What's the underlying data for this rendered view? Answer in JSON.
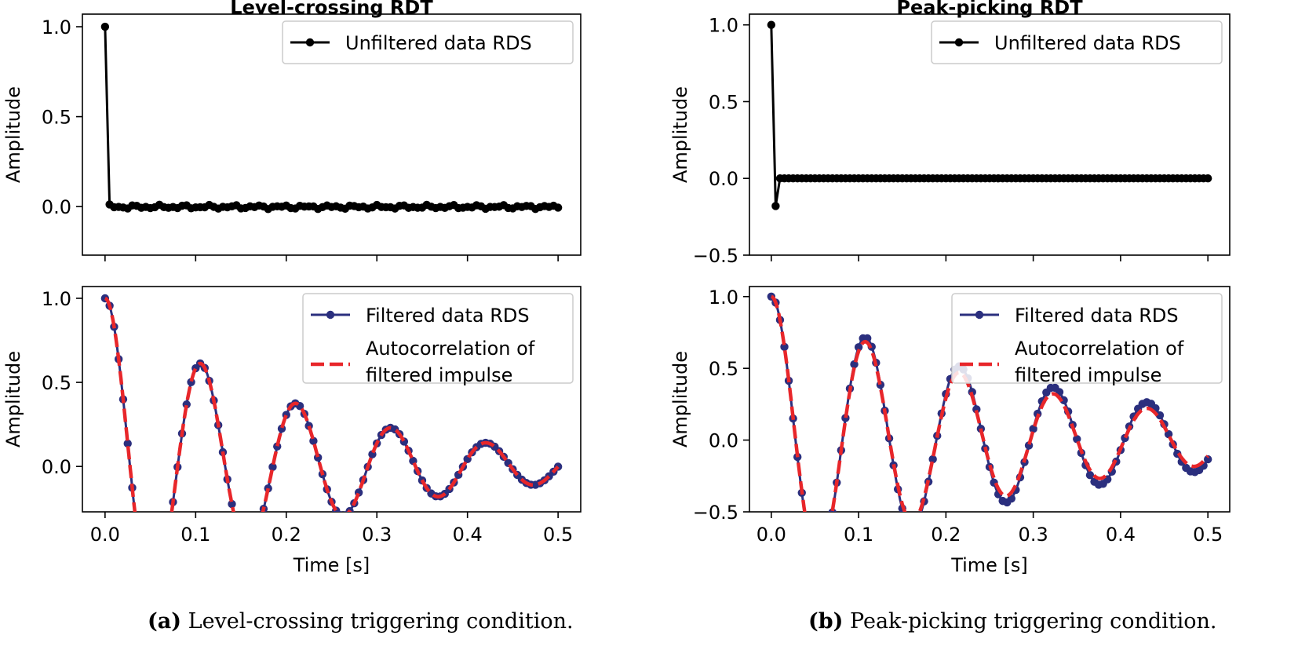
{
  "chart_data": [
    {
      "type": "line",
      "panel": "a-top",
      "title": "Level-crossing RDT",
      "xlabel": "",
      "ylabel": "Amplitude",
      "xlim": [
        -0.025,
        0.525
      ],
      "ylim": [
        -0.27,
        1.07
      ],
      "xticks": [
        0.0,
        0.1,
        0.2,
        0.3,
        0.4,
        0.5
      ],
      "xtick_labels_shown": false,
      "yticks": [
        0.0,
        0.5,
        1.0
      ],
      "ytick_labels": [
        "0.0",
        "0.5",
        "1.0"
      ],
      "legend_position": "top-right",
      "series": [
        {
          "name": "Unfiltered data RDS",
          "color": "#000000",
          "style": "solid-with-dots",
          "x_range": [
            0.0,
            0.5
          ],
          "n_points": 101,
          "points": [
            [
              0.0,
              1.0
            ],
            [
              0.005,
              0.01
            ],
            [
              0.01,
              0.0
            ],
            [
              0.05,
              0.0
            ],
            [
              0.1,
              0.0
            ],
            [
              0.2,
              0.01
            ],
            [
              0.3,
              0.0
            ],
            [
              0.4,
              0.0
            ],
            [
              0.5,
              -0.01
            ]
          ]
        }
      ]
    },
    {
      "type": "line",
      "panel": "a-bottom",
      "title": "",
      "xlabel": "Time [s]",
      "ylabel": "Amplitude",
      "xlim": [
        -0.025,
        0.525
      ],
      "ylim": [
        -0.27,
        1.07
      ],
      "xticks": [
        0.0,
        0.1,
        0.2,
        0.3,
        0.4,
        0.5
      ],
      "xtick_labels": [
        "0.0",
        "0.1",
        "0.2",
        "0.3",
        "0.4",
        "0.5"
      ],
      "yticks": [
        0.0,
        0.5,
        1.0
      ],
      "ytick_labels": [
        "0.0",
        "0.5",
        "1.0"
      ],
      "legend_position": "top-right",
      "series": [
        {
          "name": "Filtered data RDS",
          "color": "#2b2f7e",
          "style": "solid-with-dots",
          "n_points": 101,
          "model": {
            "freq_hz": 9.52,
            "zeta": 0.078,
            "first_min_x": 0.075,
            "first_min_y": -0.2
          }
        },
        {
          "name": "Autocorrelation of\nfiltered impulse",
          "color": "#e8262a",
          "style": "dashed",
          "model": {
            "freq_hz": 9.52,
            "zeta": 0.078,
            "first_min_x": 0.075,
            "first_min_y": -0.2
          }
        }
      ]
    },
    {
      "type": "line",
      "panel": "b-top",
      "title": "Peak-picking RDT",
      "xlabel": "",
      "ylabel": "Amplitude",
      "xlim": [
        -0.025,
        0.525
      ],
      "ylim": [
        -0.5,
        1.07
      ],
      "xticks": [
        0.0,
        0.1,
        0.2,
        0.3,
        0.4,
        0.5
      ],
      "xtick_labels_shown": false,
      "yticks": [
        -0.5,
        0.0,
        0.5,
        1.0
      ],
      "ytick_labels": [
        "−0.5",
        "0.0",
        "0.5",
        "1.0"
      ],
      "legend_position": "top-right",
      "series": [
        {
          "name": "Unfiltered data RDS",
          "color": "#000000",
          "style": "solid-with-dots",
          "x_range": [
            0.0,
            0.5
          ],
          "n_points": 101,
          "points": [
            [
              0.0,
              1.0
            ],
            [
              0.005,
              -0.18
            ],
            [
              0.01,
              0.0
            ],
            [
              0.1,
              0.0
            ],
            [
              0.2,
              0.0
            ],
            [
              0.3,
              0.0
            ],
            [
              0.4,
              0.0
            ],
            [
              0.5,
              0.0
            ]
          ]
        }
      ]
    },
    {
      "type": "line",
      "panel": "b-bottom",
      "title": "",
      "xlabel": "Time [s]",
      "ylabel": "Amplitude",
      "xlim": [
        -0.025,
        0.525
      ],
      "ylim": [
        -0.5,
        1.07
      ],
      "xticks": [
        0.0,
        0.1,
        0.2,
        0.3,
        0.4,
        0.5
      ],
      "xtick_labels": [
        "0.0",
        "0.1",
        "0.2",
        "0.3",
        "0.4",
        "0.5"
      ],
      "yticks": [
        -0.5,
        0.0,
        0.5,
        1.0
      ],
      "ytick_labels": [
        "−0.5",
        "0.0",
        "0.5",
        "1.0"
      ],
      "legend_position": "top-right",
      "series": [
        {
          "name": "Filtered data RDS",
          "color": "#2b2f7e",
          "style": "solid-with-dots",
          "n_points": 101,
          "model": {
            "freq_hz": 9.3,
            "zeta": 0.053,
            "first_min_x": 0.068,
            "first_min_y": -0.43
          }
        },
        {
          "name": "Autocorrelation of\nfiltered impulse",
          "color": "#e8262a",
          "style": "dashed",
          "model": {
            "freq_hz": 9.3,
            "zeta": 0.06,
            "first_min_x": 0.075,
            "first_min_y": -0.2
          }
        }
      ]
    }
  ],
  "captions": {
    "a_letter": "(a)",
    "a_text": "Level-crossing triggering condition.",
    "b_letter": "(b)",
    "b_text": "Peak-picking triggering condition."
  }
}
